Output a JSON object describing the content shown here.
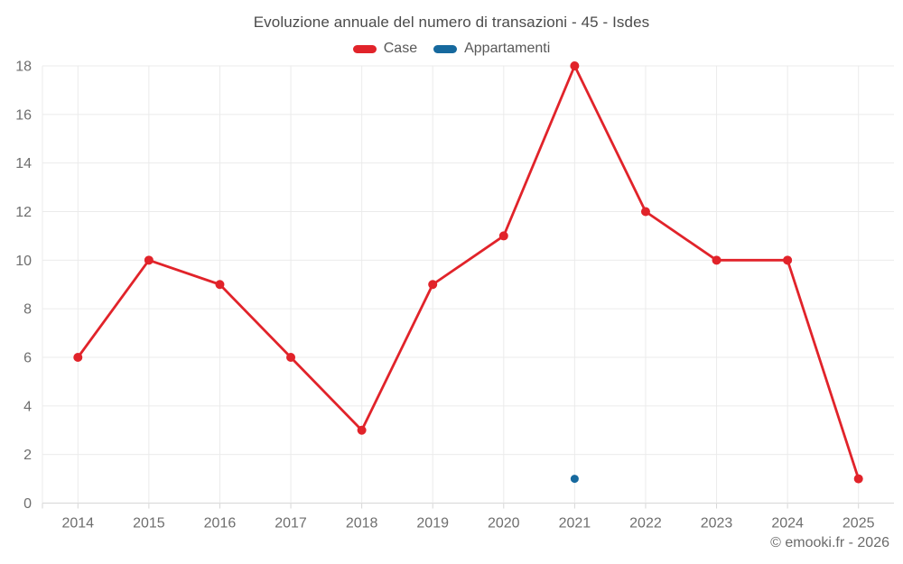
{
  "chart_data": {
    "type": "line",
    "title": "Evoluzione annuale del numero di transazioni - 45 - Isdes",
    "categories": [
      "2014",
      "2015",
      "2016",
      "2017",
      "2018",
      "2019",
      "2020",
      "2021",
      "2022",
      "2023",
      "2024",
      "2025"
    ],
    "series": [
      {
        "name": "Case",
        "color": "#e1232a",
        "marker_radius": 5,
        "values": [
          6,
          10,
          9,
          6,
          3,
          9,
          11,
          18,
          12,
          10,
          10,
          1
        ]
      },
      {
        "name": "Appartamenti",
        "color": "#16699e",
        "marker_radius": 4.5,
        "values": [
          null,
          null,
          null,
          null,
          null,
          null,
          null,
          1,
          null,
          null,
          null,
          null
        ]
      }
    ],
    "xlabel": "",
    "ylabel": "",
    "ylim": [
      0,
      18
    ],
    "yticks": [
      0,
      2,
      4,
      6,
      8,
      10,
      12,
      14,
      16,
      18
    ],
    "grid": true,
    "legend_position": "top",
    "colors": {
      "grid": "#ebebeb",
      "axis": "#d6d6d6",
      "tick_labels": "#6e6e6e",
      "title": "#4b4b4b",
      "legend_labels": "#585858"
    }
  },
  "footer": {
    "text": "© emooki.fr - 2026"
  }
}
